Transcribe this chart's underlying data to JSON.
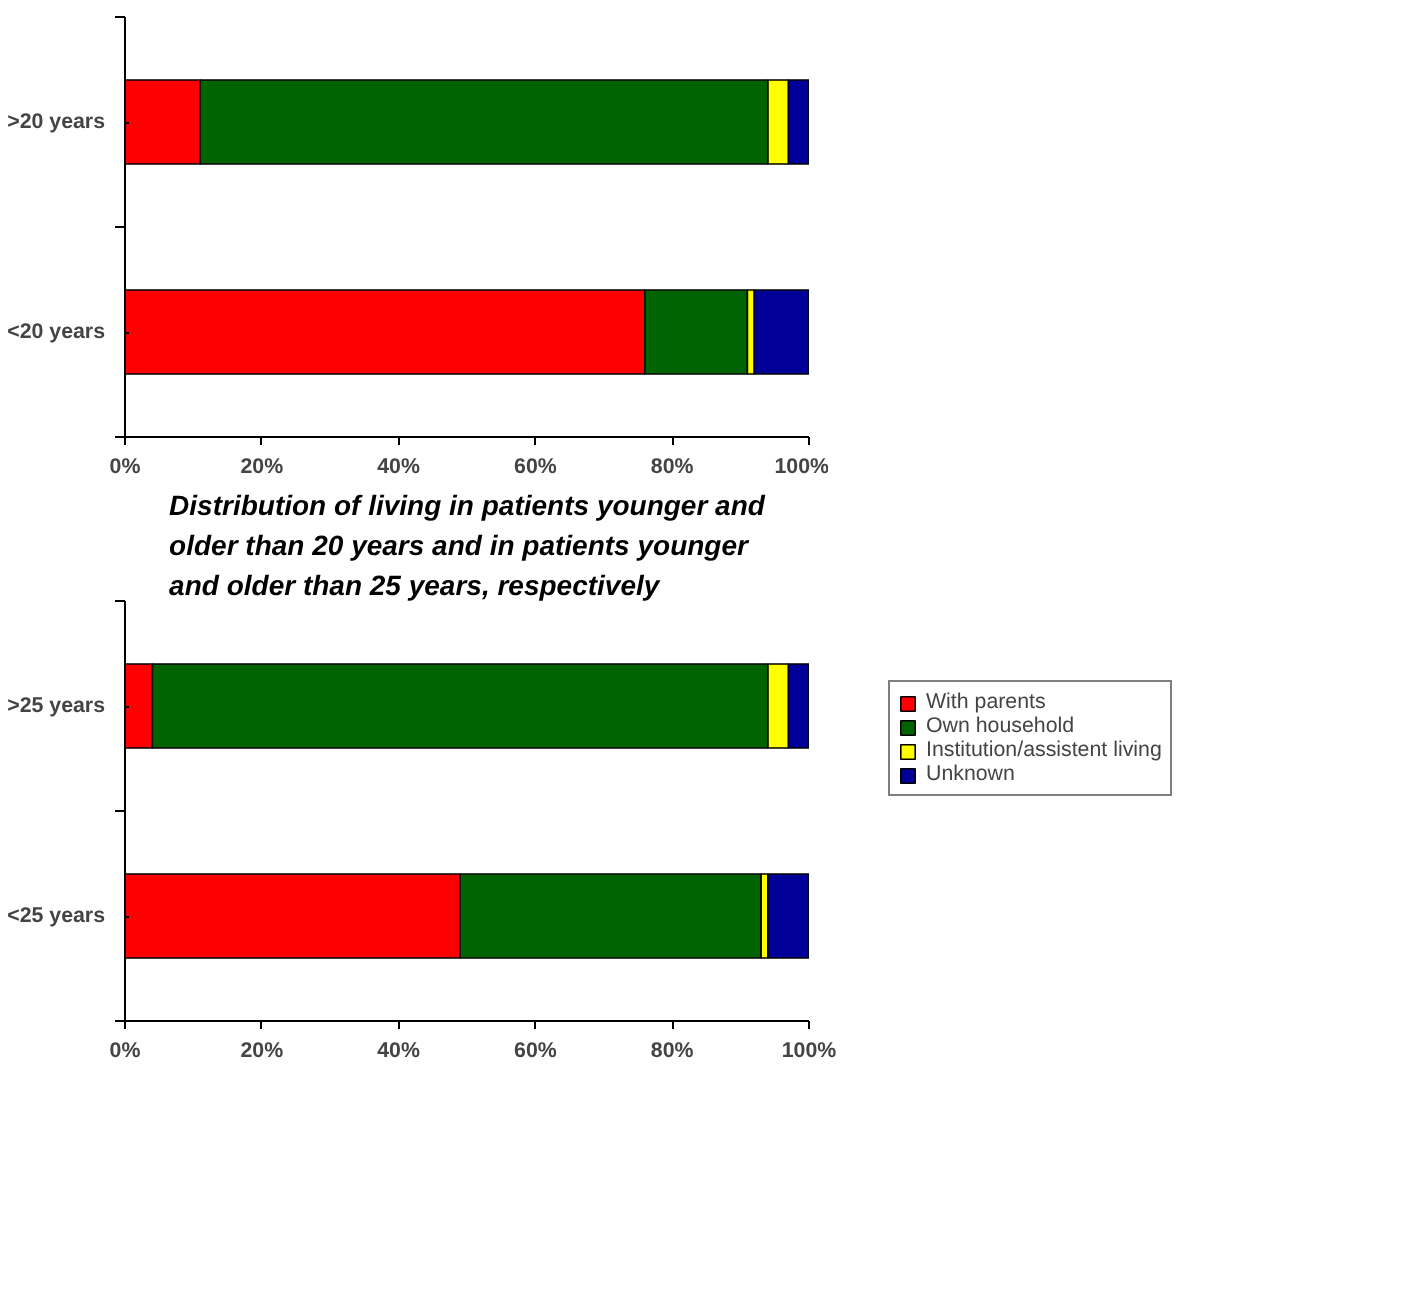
{
  "chart_data": [
    {
      "type": "bar",
      "orientation": "horizontal",
      "stacked": true,
      "categories": [
        ">20 years",
        "<20 years"
      ],
      "xlim": [
        0,
        100
      ],
      "xticks": [
        {
          "value": 0,
          "label": "0%"
        },
        {
          "value": 20,
          "label": "20%"
        },
        {
          "value": 40,
          "label": "40%"
        },
        {
          "value": 60,
          "label": "60%"
        },
        {
          "value": 80,
          "label": "80%"
        },
        {
          "value": 100,
          "label": "100%"
        }
      ],
      "grid": false,
      "legend": false,
      "series": [
        {
          "color": "#ff0000",
          "values": [
            11,
            76
          ]
        },
        {
          "color": "#006400",
          "values": [
            83,
            15
          ]
        },
        {
          "color": "#ffff00",
          "values": [
            3,
            1
          ]
        },
        {
          "color": "#000099",
          "values": [
            3,
            8
          ]
        }
      ]
    },
    {
      "type": "bar",
      "orientation": "horizontal",
      "stacked": true,
      "title": "Distribution of living in patients younger and older than 20 years and in patients younger and older than 25 years, respectively",
      "categories": [
        ">25 years",
        "<25 years"
      ],
      "xlim": [
        0,
        100
      ],
      "xticks": [
        {
          "value": 0,
          "label": "0%"
        },
        {
          "value": 20,
          "label": "20%"
        },
        {
          "value": 40,
          "label": "40%"
        },
        {
          "value": 60,
          "label": "60%"
        },
        {
          "value": 80,
          "label": "80%"
        },
        {
          "value": 100,
          "label": "100%"
        }
      ],
      "grid": false,
      "legend": "right",
      "series": [
        {
          "name": "With parents",
          "color": "#ff0000",
          "values": [
            4,
            49
          ]
        },
        {
          "name": "Own household",
          "color": "#006400",
          "values": [
            90,
            44
          ]
        },
        {
          "name": "Institution/assistent living",
          "color": "#ffff00",
          "values": [
            3,
            1
          ]
        },
        {
          "name": "Unknown",
          "color": "#000099",
          "values": [
            3,
            6
          ]
        }
      ]
    }
  ]
}
